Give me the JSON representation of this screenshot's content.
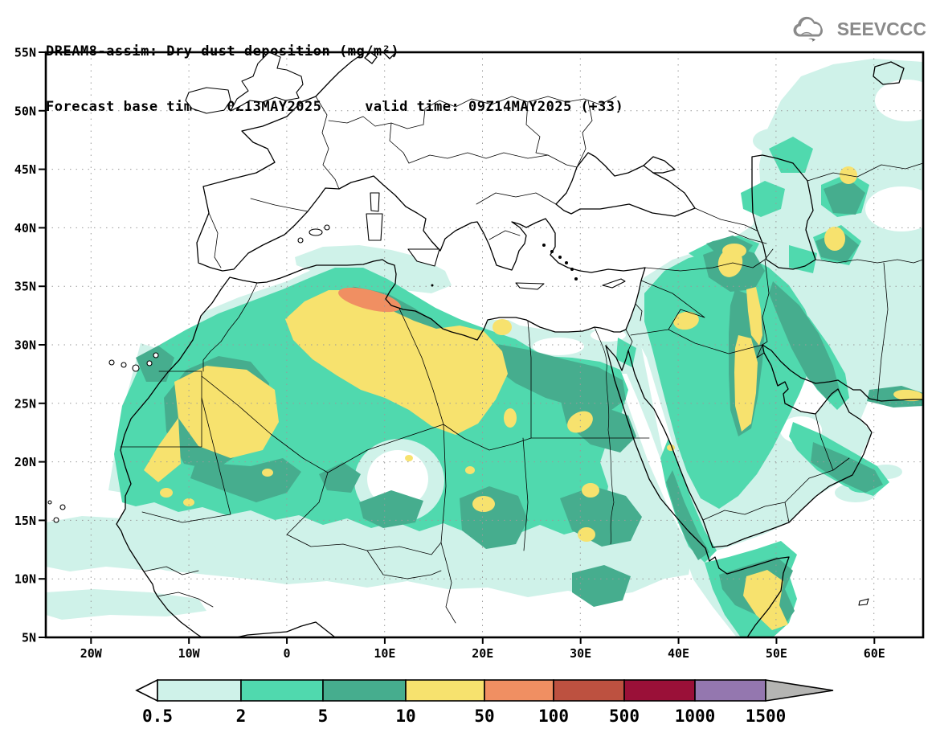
{
  "header": {
    "title_line1": "DREAM8-assim: Dry dust deposition (mg/m²)",
    "title_line2": "Forecast base time: 00Z13MAY2025     valid time: 09Z14MAY2025 (+33)"
  },
  "logo": {
    "text": "SEEVCCC",
    "color": "#8a8a8a"
  },
  "axes": {
    "lat_labels": [
      "55N",
      "50N",
      "45N",
      "40N",
      "35N",
      "30N",
      "25N",
      "20N",
      "15N",
      "10N",
      "5N"
    ],
    "lon_labels": [
      "20W",
      "10W",
      "0",
      "10E",
      "20E",
      "30E",
      "40E",
      "50E",
      "60E"
    ]
  },
  "legend": {
    "tick_labels": [
      "0.5",
      "2",
      "5",
      "10",
      "50",
      "100",
      "500",
      "1000",
      "1500"
    ],
    "segment_colors": [
      "#ffffff",
      "#cff2e9",
      "#50d9ae",
      "#46ad8e",
      "#f7e26e",
      "#f08f62",
      "#bd5140",
      "#9a1038",
      "#9477af",
      "#b5b5b3"
    ],
    "units": "mg/m²"
  },
  "chart_data": {
    "type": "heatmap",
    "subtype": "filled-contour-geographic-map",
    "title": "DREAM8-assim: Dry dust deposition (mg/m²)",
    "model": "DREAM8-assim",
    "variable": "Dry dust deposition",
    "units": "mg/m²",
    "forecast_base_time": "00Z13MAY2025",
    "valid_time": "09Z14MAY2025",
    "forecast_hour": "+33",
    "provider": "SEEVCCC",
    "map_extent": {
      "lon_min": -25,
      "lon_max": 65,
      "lat_min": 5,
      "lat_max": 55
    },
    "lat_ticks_deg": [
      55,
      50,
      45,
      40,
      35,
      30,
      25,
      20,
      15,
      10,
      5
    ],
    "lon_ticks_deg": [
      -20,
      -10,
      0,
      10,
      20,
      30,
      40,
      50,
      60
    ],
    "grid": "dotted graticule every 5 deg lat / 10 deg lon",
    "legend_position": "bottom horizontal colorbar with open-ended arrows",
    "contour_levels_mg_m2": [
      0.5,
      2,
      5,
      10,
      50,
      100,
      500,
      1000,
      1500
    ],
    "level_colors_hex": [
      "#ffffff",
      "#cff2e9",
      "#50d9ae",
      "#46ad8e",
      "#f7e26e",
      "#f08f62",
      "#bd5140",
      "#9a1038",
      "#9477af",
      "#b5b5b3"
    ],
    "max_category_shown_on_map": "50-100 mg/m² (orange)",
    "notable_features": [
      "Orange 50-100 mg/m² maximum: elongated cell on the Algeria/Tunisia border near 7E,34N",
      "Yellow 10-50 mg/m²: Western Sahara-Mauritania, central Algeria to NW Libya band, small cells in Chad/Sudan/south Egypt, Syria-Jordan, northern Iraq and along Tigris, Kuwait-eastern Saudi strip, eastern Turkey, east of Caspian, Azerbaijan-Iran border, northern Somalia, Makran coast",
      "Green 5-10 and teal 2-5 mg/m²: broad swath across the Sahara, Sahel, Egypt, Sudan, Levant, Iraq, Zagros, Arabian Peninsula, Oman, Horn of Africa and Caspian basin",
      "Pale cyan 0.5-2 mg/m² fringe: eastern Atlantic off West Africa, western Mediterranean, Turkey, Caucasus-Caspian-Kazakhstan, Iran, Arabian Sea near Socotra"
    ]
  }
}
